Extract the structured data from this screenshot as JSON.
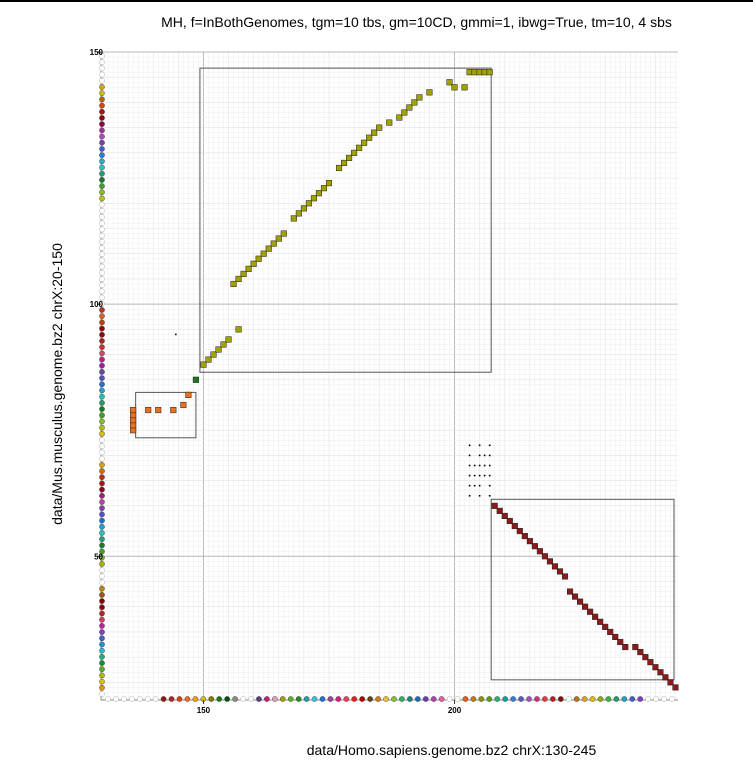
{
  "chart_data": {
    "type": "scatter",
    "title": "MH, f=InBothGenomes, tgm=10 tbs, gm=10CD, gmmi=1, ibwg=True, tm=10, 4 sbs",
    "xlabel": "data/Homo.sapiens.genome.bz2 chrX:130-245",
    "ylabel": "data/Mus.musculus.genome.bz2 chrX:20-150",
    "xlim": [
      129.6,
      244.5
    ],
    "ylim": [
      21.5,
      150
    ],
    "x_ticks": [
      "150",
      "200"
    ],
    "y_ticks": [
      "50",
      "100",
      "150"
    ],
    "grid": true,
    "series": [
      {
        "color": "#a0a000",
        "values": [
          [
            156,
            104
          ],
          [
            157,
            105
          ],
          [
            158,
            106
          ],
          [
            159,
            107
          ],
          [
            160,
            108
          ],
          [
            161,
            109
          ],
          [
            162,
            110
          ],
          [
            163,
            111
          ],
          [
            164,
            112
          ],
          [
            165,
            113
          ],
          [
            166,
            114
          ],
          [
            168,
            117
          ],
          [
            169,
            118
          ],
          [
            170,
            119
          ],
          [
            171,
            120
          ],
          [
            172,
            121
          ],
          [
            173,
            122
          ],
          [
            174,
            123
          ],
          [
            175,
            124
          ],
          [
            177,
            127
          ],
          [
            178,
            128
          ],
          [
            179,
            129
          ],
          [
            180,
            130
          ],
          [
            181,
            131
          ],
          [
            182,
            132
          ],
          [
            183,
            133
          ],
          [
            184,
            134
          ],
          [
            185,
            135
          ],
          [
            187,
            136
          ],
          [
            189,
            137
          ],
          [
            190,
            138
          ],
          [
            191,
            139
          ],
          [
            192,
            140
          ],
          [
            193,
            141
          ],
          [
            195,
            142
          ],
          [
            199,
            144
          ],
          [
            200,
            143
          ],
          [
            202,
            143
          ],
          [
            150,
            88
          ],
          [
            151,
            89
          ],
          [
            152,
            90
          ],
          [
            153,
            91
          ],
          [
            154,
            92
          ],
          [
            155,
            93
          ],
          [
            157,
            95
          ],
          [
            203,
            146
          ],
          [
            204,
            146
          ],
          [
            205,
            146
          ],
          [
            206,
            146
          ],
          [
            207,
            146
          ]
        ]
      },
      {
        "color": "#e87020",
        "values": [
          [
            136,
            75
          ],
          [
            136,
            76
          ],
          [
            136,
            77
          ],
          [
            136,
            78
          ],
          [
            136,
            79
          ],
          [
            139,
            79
          ],
          [
            141,
            79
          ],
          [
            144,
            79
          ],
          [
            146,
            80
          ],
          [
            147,
            82
          ]
        ]
      },
      {
        "color": "#1a7a1a",
        "values": [
          [
            148.5,
            85
          ]
        ]
      },
      {
        "color": "#8b1a1a",
        "values": [
          [
            208,
            60
          ],
          [
            209,
            59
          ],
          [
            210,
            58
          ],
          [
            211,
            57
          ],
          [
            212,
            56
          ],
          [
            213,
            55
          ],
          [
            214,
            54
          ],
          [
            215,
            53
          ],
          [
            216,
            52
          ],
          [
            217,
            51
          ],
          [
            218,
            50
          ],
          [
            219,
            49
          ],
          [
            220,
            48
          ],
          [
            221,
            47
          ],
          [
            222,
            46
          ],
          [
            223,
            43
          ],
          [
            224,
            42
          ],
          [
            225,
            41
          ],
          [
            226,
            40
          ],
          [
            227,
            39
          ],
          [
            228,
            38
          ],
          [
            229,
            37
          ],
          [
            230,
            36
          ],
          [
            231,
            35
          ],
          [
            232,
            34
          ],
          [
            233,
            33
          ],
          [
            234,
            32
          ],
          [
            236,
            32
          ],
          [
            237,
            31
          ],
          [
            238,
            30
          ],
          [
            239,
            29
          ],
          [
            240,
            28
          ],
          [
            241,
            27
          ],
          [
            242,
            26
          ],
          [
            243,
            25
          ],
          [
            244,
            24
          ]
        ]
      },
      {
        "color": "#000000",
        "values": [
          [
            144.5,
            94
          ],
          [
            203,
            72
          ],
          [
            205,
            72
          ],
          [
            207,
            72
          ],
          [
            203,
            70
          ],
          [
            205,
            70
          ],
          [
            206,
            70
          ],
          [
            207,
            70
          ],
          [
            203,
            68
          ],
          [
            204,
            68
          ],
          [
            205,
            68
          ],
          [
            206,
            68
          ],
          [
            207,
            68
          ],
          [
            203,
            66
          ],
          [
            204,
            66
          ],
          [
            205,
            66
          ],
          [
            206,
            66
          ],
          [
            207,
            66
          ],
          [
            203,
            64
          ],
          [
            204,
            64
          ],
          [
            205,
            64
          ],
          [
            207,
            64
          ],
          [
            203,
            62
          ],
          [
            205,
            62
          ],
          [
            207,
            62
          ]
        ]
      }
    ],
    "boxes": [
      {
        "x0": 149.3,
        "x1": 207.3,
        "y0": 86.5,
        "y1": 146.8
      },
      {
        "x0": 136.5,
        "x1": 148.5,
        "y0": 73.5,
        "y1": 82.5
      },
      {
        "x0": 207.3,
        "x1": 243.7,
        "y0": 25.5,
        "y1": 61.3
      }
    ],
    "x_axis_strip": [
      "#d8d8d8",
      "#d8d8d8",
      "#d8d8d8",
      "#d8d8d8",
      "#d8d8d8",
      "#d8d8d8",
      "#d8d8d8",
      "#8b1a1a",
      "#b22222",
      "#e04010",
      "#e87020",
      "#f0a000",
      "#d4c000",
      "#7a7a00",
      "#1a7a1a",
      "#005000",
      "#8a8a8a",
      "#d8d8d8",
      "#d8d8d8",
      "#5a3a8a",
      "#c02070",
      "#e0a0c0",
      "#a0a000",
      "#60b030",
      "#2a8a2a",
      "#20a0a0",
      "#40c0e0",
      "#2070d0",
      "#a040a0",
      "#d02080",
      "#f04060",
      "#e02020",
      "#b00000",
      "#604020",
      "#d08000",
      "#e8c040",
      "#8ac030",
      "#30b060",
      "#208080",
      "#1f6fb0",
      "#6a3da8",
      "#b040b0",
      "#e060a0",
      "#d8d8d8",
      "#d8d8d8",
      "#e06020",
      "#c08000",
      "#909000",
      "#50a020",
      "#30b070",
      "#10a0a0",
      "#3080d0",
      "#5a5ac0",
      "#a050c0",
      "#d03080",
      "#e04040",
      "#c02020",
      "#801010",
      "#d8d8d8",
      "#c07020",
      "#e0a020",
      "#d8c000",
      "#90b000",
      "#40b040",
      "#20a070",
      "#20a0c0",
      "#4060d0",
      "#8040c0",
      "#d8d8d8",
      "#d8d8d8",
      "#d8d8d8",
      "#d8d8d8"
    ],
    "y_axis_strip": [
      "#d8d8d8",
      "#d8d8d8",
      "#d8d8d8",
      "#d8d8d8",
      "#d8d8d8",
      "#e0a020",
      "#d0c000",
      "#c06000",
      "#e04000",
      "#b01010",
      "#8a0a0a",
      "#900040",
      "#a030a0",
      "#c040c0",
      "#7040b0",
      "#4060d0",
      "#2080e0",
      "#20b0d0",
      "#30c0c0",
      "#20a070",
      "#108030",
      "#40a020",
      "#80c020",
      "#c0c000",
      "#d8d8d8",
      "#d8d8d8",
      "#d8d8d8",
      "#d8d8d8",
      "#d8d8d8",
      "#d8d8d8",
      "#d8d8d8",
      "#d8d8d8",
      "#d8d8d8",
      "#d8d8d8",
      "#d8d8d8",
      "#d8d8d8",
      "#d8d8d8",
      "#d8d8d8",
      "#d8d8d8",
      "#d8d8d8",
      "#d8d8d8",
      "#c03020",
      "#e06020",
      "#c04000",
      "#a00000",
      "#8a0a0a",
      "#b02020",
      "#d03030",
      "#e04060",
      "#c02080",
      "#a020a0",
      "#7040b0",
      "#5050c0",
      "#2070d0",
      "#20a0d0",
      "#20c0b0",
      "#20a060",
      "#108020",
      "#40a020",
      "#80c020",
      "#b0c000",
      "#d8c000",
      "#d8d8d8",
      "#d8d8d8",
      "#d8d8d8",
      "#d8d8d8",
      "#e0a000",
      "#d07000",
      "#c03000",
      "#b01010",
      "#900020",
      "#a02080",
      "#c040a0",
      "#8040c0",
      "#5050d0",
      "#2070d0",
      "#20a0d0",
      "#20c0c0",
      "#20a070",
      "#108030",
      "#40a020",
      "#80c020",
      "#b0b000",
      "#d8d8d8",
      "#d8d8d8",
      "#d8d8d8",
      "#c08000",
      "#b05000",
      "#900000",
      "#8a0a0a",
      "#c02020",
      "#e03060",
      "#c020a0",
      "#8040c0",
      "#4060d0",
      "#2090e0",
      "#20c0d0",
      "#20b080",
      "#109030",
      "#50b020",
      "#a0c000",
      "#e0c000",
      "#f09000",
      "#d8d8d8"
    ]
  }
}
